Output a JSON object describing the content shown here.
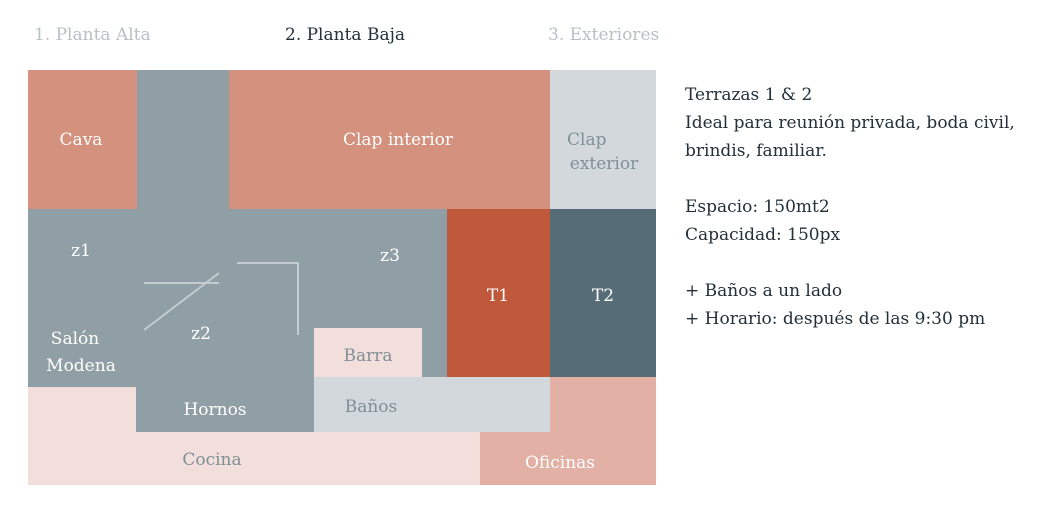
{
  "tabs": [
    {
      "label": "1. Planta Alta",
      "active": false
    },
    {
      "label": "2. Planta Baja",
      "active": true
    },
    {
      "label": "3. Exteriores",
      "active": false
    }
  ],
  "colors": {
    "tab_inactive": "#b9c0c4",
    "tab_active": "#22303a",
    "salmon": "#d4917e",
    "grey": "#909fa5",
    "light_grey": "#d2d8db",
    "pale_pink": "#f2dedb",
    "rust": "#c0583c",
    "slate": "#566d77",
    "pink_mid": "#e3b0a5",
    "line": "#c4ccd0"
  },
  "plan": {
    "labels": {
      "cava": "Cava",
      "clap_interior": "Clap interior",
      "clap_exterior_1": "Clap",
      "clap_exterior_2": "exterior",
      "z1": "z1",
      "z2": "z2",
      "z3": "z3",
      "t1": "T1",
      "t2": "T2",
      "salon_1": "Salón",
      "salon_2": "Modena",
      "barra": "Barra",
      "hornos": "Hornos",
      "banos": "Baños",
      "cocina": "Cocina",
      "oficinas": "Oficinas"
    }
  },
  "info": {
    "title": "Terrazas 1 & 2",
    "description_1": "Ideal para reunión privada, boda civil,",
    "description_2": "brindis, familiar.",
    "espacio": "Espacio: 150mt2",
    "capacidad": "Capacidad: 150px",
    "note_1": "+ Baños a un lado",
    "note_2": "+ Horario: después de las 9:30 pm"
  }
}
